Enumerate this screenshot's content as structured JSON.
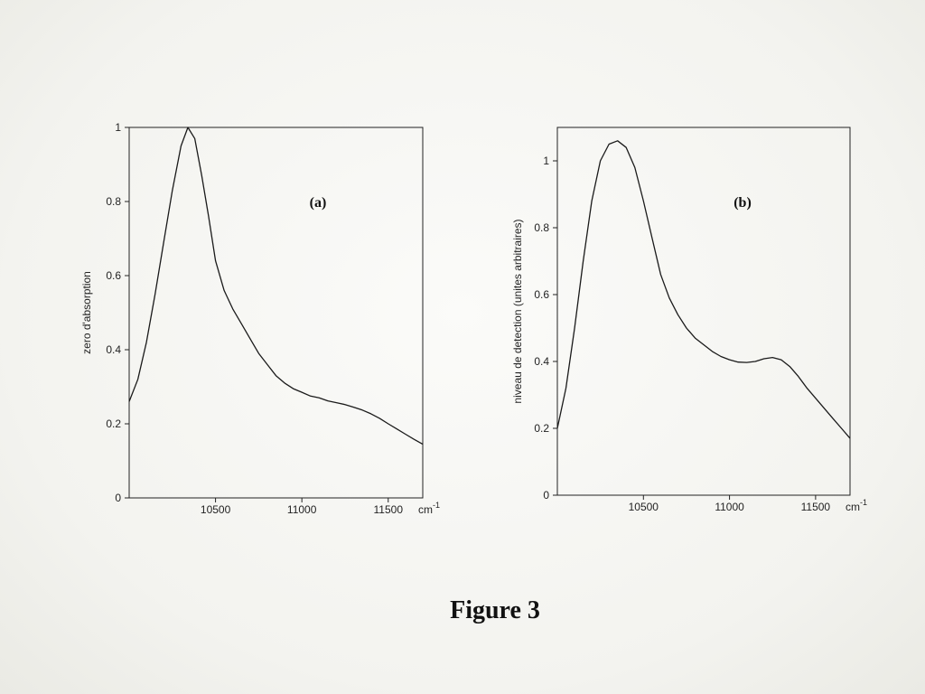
{
  "figure_caption": "Figure 3",
  "chart_data": [
    {
      "type": "line",
      "panel_label": "(a)",
      "ylabel": "zero d'absorption",
      "x_unit_label": "cm",
      "x_unit_exponent": "-1",
      "xlim": [
        10000,
        11700
      ],
      "ylim": [
        0,
        1
      ],
      "xticks": [
        10500,
        11000,
        11500
      ],
      "xtick_labels": [
        "10500",
        "11000",
        "11500"
      ],
      "yticks": [
        0,
        0.2,
        0.4,
        0.6,
        0.8,
        1
      ],
      "ytick_labels": [
        "0",
        "0.2",
        "0.4",
        "0.6",
        "0.8",
        "1"
      ],
      "grid": false,
      "series": [
        {
          "x": [
            10000,
            10050,
            10100,
            10150,
            10200,
            10250,
            10300,
            10340,
            10380,
            10420,
            10460,
            10500,
            10550,
            10600,
            10650,
            10700,
            10750,
            10800,
            10850,
            10900,
            10950,
            11000,
            11050,
            11100,
            11150,
            11200,
            11250,
            11300,
            11350,
            11400,
            11450,
            11500,
            11550,
            11600,
            11650,
            11700
          ],
          "y": [
            0.26,
            0.32,
            0.42,
            0.55,
            0.69,
            0.83,
            0.95,
            1.0,
            0.97,
            0.87,
            0.76,
            0.64,
            0.56,
            0.51,
            0.47,
            0.43,
            0.39,
            0.36,
            0.33,
            0.31,
            0.295,
            0.285,
            0.275,
            0.27,
            0.262,
            0.257,
            0.252,
            0.245,
            0.237,
            0.227,
            0.215,
            0.2,
            0.186,
            0.172,
            0.158,
            0.145
          ]
        }
      ]
    },
    {
      "type": "line",
      "panel_label": "(b)",
      "ylabel": "niveau de detection (unites arbitraires)",
      "x_unit_label": "cm",
      "x_unit_exponent": "-1",
      "xlim": [
        10000,
        11700
      ],
      "ylim": [
        0,
        1.1
      ],
      "xticks": [
        10500,
        11000,
        11500
      ],
      "xtick_labels": [
        "10500",
        "11000",
        "11500"
      ],
      "yticks": [
        0,
        0.2,
        0.4,
        0.6,
        0.8,
        1
      ],
      "ytick_labels": [
        "0",
        "0.2",
        "0.4",
        "0.6",
        "0.8",
        "1"
      ],
      "grid": false,
      "series": [
        {
          "x": [
            10000,
            10050,
            10100,
            10150,
            10200,
            10250,
            10300,
            10350,
            10400,
            10450,
            10500,
            10550,
            10600,
            10650,
            10700,
            10750,
            10800,
            10850,
            10900,
            10950,
            11000,
            11050,
            11100,
            11150,
            11200,
            11250,
            11300,
            11350,
            11400,
            11450,
            11500,
            11550,
            11600,
            11650,
            11700
          ],
          "y": [
            0.2,
            0.32,
            0.5,
            0.7,
            0.88,
            1.0,
            1.05,
            1.06,
            1.04,
            0.98,
            0.88,
            0.77,
            0.66,
            0.59,
            0.54,
            0.5,
            0.47,
            0.45,
            0.43,
            0.415,
            0.405,
            0.398,
            0.397,
            0.4,
            0.408,
            0.412,
            0.405,
            0.385,
            0.355,
            0.32,
            0.29,
            0.26,
            0.23,
            0.2,
            0.17
          ]
        }
      ]
    }
  ]
}
